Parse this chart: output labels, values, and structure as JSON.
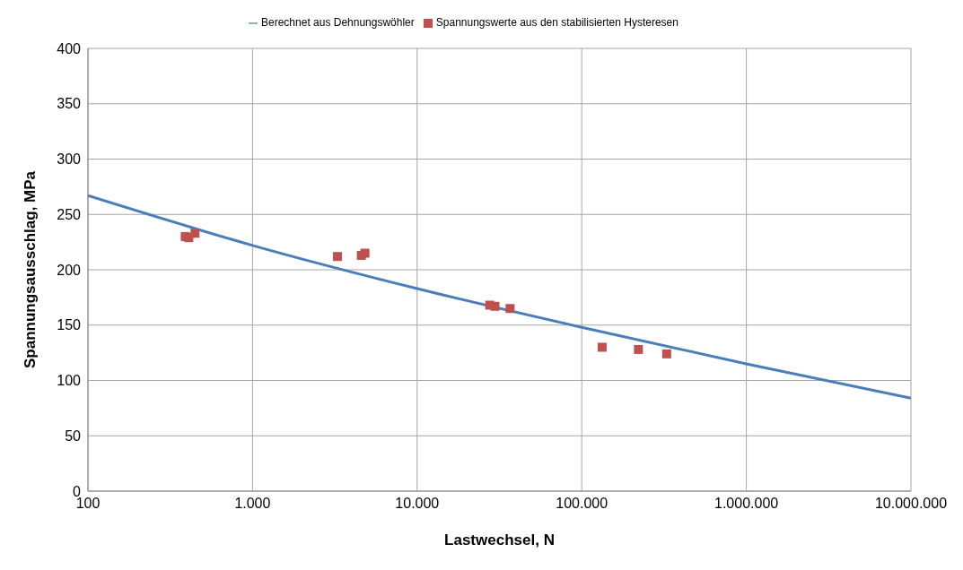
{
  "chart_data": {
    "type": "scatter",
    "xlabel": "Lastwechsel, N",
    "ylabel": "Spannungsausschlag, MPa",
    "log": "x",
    "grid": true,
    "legend": "top",
    "xlim": [
      100,
      10000000
    ],
    "xticks": [
      {
        "value": 100,
        "label": "100"
      },
      {
        "value": 1000,
        "label": "1.000"
      },
      {
        "value": 10000,
        "label": "10.000"
      },
      {
        "value": 100000,
        "label": "100.000"
      },
      {
        "value": 1000000,
        "label": "1.000.000"
      },
      {
        "value": 10000000,
        "label": "10.000.000"
      }
    ],
    "ylim": [
      0,
      400
    ],
    "yticks": [
      0,
      50,
      100,
      150,
      200,
      250,
      300,
      350,
      400
    ],
    "series": [
      {
        "name": "Berechnet aus Dehnungswöhler",
        "type": "line",
        "color": "#4a7ebb",
        "x": [
          100,
          1000,
          10000,
          100000,
          1000000,
          10000000
        ],
        "values": [
          267,
          222,
          183,
          148,
          115,
          84
        ]
      },
      {
        "name": "Spannungswerte aus den stabilisierten Hysteresen",
        "marker": "square",
        "color": "#c0504d",
        "x": [
          390,
          410,
          447,
          3280,
          4580,
          4820,
          27600,
          29700,
          36700,
          133000,
          221000,
          328000
        ],
        "values": [
          230,
          229,
          233,
          212,
          213,
          215,
          168,
          167,
          165,
          130,
          128,
          124
        ]
      }
    ]
  }
}
